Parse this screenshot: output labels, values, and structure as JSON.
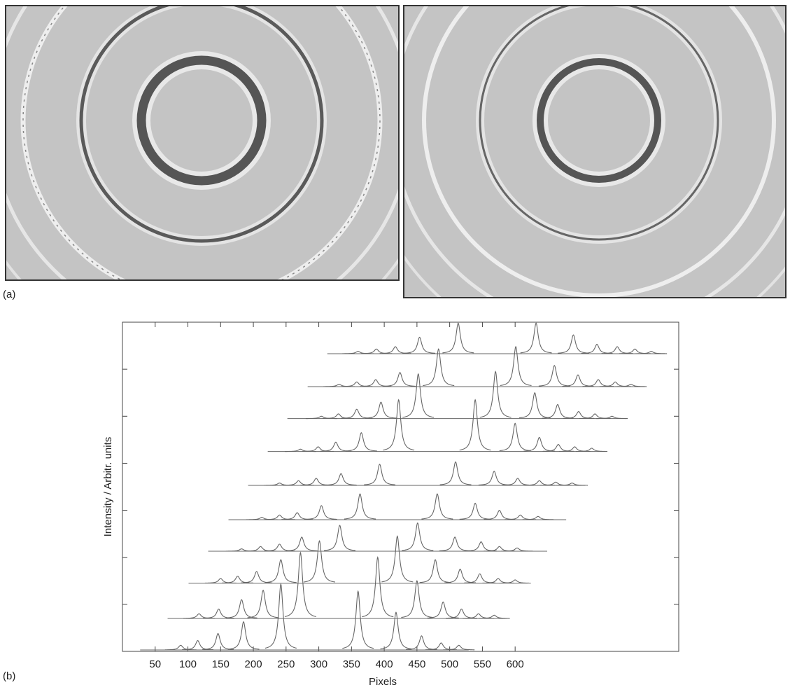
{
  "panel_a_label": "(a)",
  "panel_b_label": "(b)",
  "chart_data": {
    "type": "waterfall",
    "x_label": "Pixels",
    "y_label": "Intensity / Arbitr. units",
    "xlim": [
      0,
      850
    ],
    "xticks": [
      50,
      100,
      150,
      200,
      250,
      300,
      350,
      400,
      450,
      500,
      550,
      600
    ],
    "ylim": [
      0,
      7
    ],
    "yticks": [
      1,
      2,
      3,
      4,
      5,
      6
    ],
    "color": "#666666",
    "series": [
      {
        "offset": 0.03,
        "start": 27,
        "end": 529,
        "x": [
          89,
          115,
          146,
          185,
          242,
          360,
          418,
          457,
          487,
          514
        ],
        "values": [
          0.1,
          0.2,
          0.35,
          0.6,
          1.4,
          1.25,
          0.8,
          0.3,
          0.15,
          0.1
        ]
      },
      {
        "offset": 0.7,
        "start": 69,
        "end": 587,
        "x": [
          117,
          147,
          182,
          215,
          272,
          390,
          450,
          490,
          518,
          544,
          568
        ],
        "values": [
          0.1,
          0.2,
          0.4,
          0.6,
          1.4,
          1.3,
          0.8,
          0.35,
          0.2,
          0.1,
          0.07
        ]
      },
      {
        "offset": 1.45,
        "start": 101,
        "end": 619,
        "x": [
          150,
          176,
          205,
          242,
          301,
          420,
          478,
          516,
          546,
          574,
          600
        ],
        "values": [
          0.1,
          0.15,
          0.25,
          0.5,
          0.9,
          1.0,
          0.5,
          0.3,
          0.2,
          0.1,
          0.07
        ]
      },
      {
        "offset": 2.13,
        "start": 131,
        "end": 649,
        "x": [
          182,
          211,
          240,
          274,
          332,
          451,
          508,
          548,
          576,
          603
        ],
        "values": [
          0.05,
          0.1,
          0.15,
          0.3,
          0.55,
          0.6,
          0.3,
          0.2,
          0.1,
          0.07
        ]
      },
      {
        "offset": 2.8,
        "start": 162,
        "end": 678,
        "x": [
          213,
          240,
          267,
          304,
          363,
          481,
          539,
          576,
          608,
          635
        ],
        "values": [
          0.05,
          0.1,
          0.15,
          0.3,
          0.55,
          0.55,
          0.35,
          0.2,
          0.1,
          0.07
        ]
      },
      {
        "offset": 3.53,
        "start": 192,
        "end": 707,
        "x": [
          240,
          269,
          296,
          334,
          393,
          509,
          568,
          604,
          637,
          662,
          687
        ],
        "values": [
          0.05,
          0.1,
          0.15,
          0.25,
          0.45,
          0.5,
          0.3,
          0.15,
          0.1,
          0.07,
          0.05
        ]
      },
      {
        "offset": 4.25,
        "start": 222,
        "end": 737,
        "x": [
          272,
          299,
          326,
          365,
          422,
          539,
          600,
          637,
          666,
          691,
          717
        ],
        "values": [
          0.05,
          0.1,
          0.2,
          0.4,
          1.1,
          1.1,
          0.6,
          0.3,
          0.15,
          0.1,
          0.07
        ]
      },
      {
        "offset": 4.95,
        "start": 252,
        "end": 769,
        "x": [
          304,
          330,
          358,
          395,
          452,
          570,
          630,
          665,
          697,
          722,
          748
        ],
        "values": [
          0.05,
          0.1,
          0.2,
          0.35,
          0.95,
          1.0,
          0.55,
          0.3,
          0.15,
          0.1,
          0.05
        ]
      },
      {
        "offset": 5.63,
        "start": 283,
        "end": 799,
        "x": [
          331,
          358,
          387,
          424,
          483,
          601,
          660,
          696,
          727,
          753,
          777
        ],
        "values": [
          0.05,
          0.1,
          0.15,
          0.3,
          0.8,
          0.85,
          0.45,
          0.25,
          0.15,
          0.1,
          0.05
        ]
      },
      {
        "offset": 6.33,
        "start": 313,
        "end": 830,
        "x": [
          360,
          388,
          417,
          454,
          513,
          632,
          689,
          725,
          756,
          783,
          808
        ],
        "values": [
          0.05,
          0.1,
          0.15,
          0.35,
          0.65,
          0.65,
          0.4,
          0.2,
          0.15,
          0.1,
          0.05
        ]
      }
    ]
  }
}
